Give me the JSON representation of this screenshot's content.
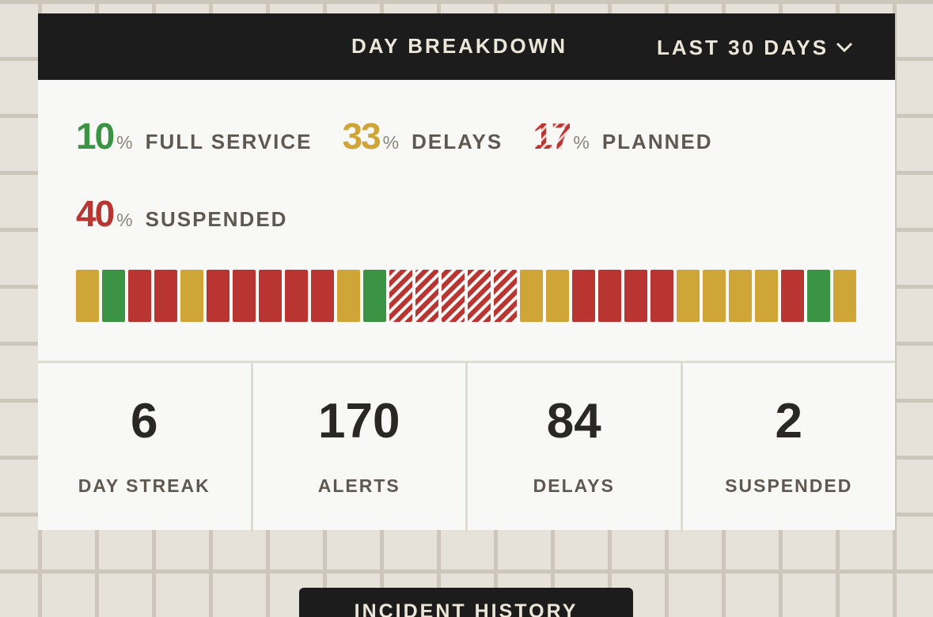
{
  "header": {
    "title": "DAY BREAKDOWN",
    "range": "LAST 30 DAYS"
  },
  "breakdown": {
    "unit": "%",
    "items": [
      {
        "value": 10,
        "label": "FULL SERVICE",
        "color": "#3b9443",
        "striped": false
      },
      {
        "value": 33,
        "label": "DELAYS",
        "color": "#d0a537",
        "striped": false
      },
      {
        "value": 17,
        "label": "PLANNED",
        "color": "#b83532",
        "striped": true
      },
      {
        "value": 40,
        "label": "SUSPENDED",
        "color": "#b83532",
        "striped": false
      }
    ],
    "days": [
      1,
      0,
      3,
      3,
      1,
      3,
      3,
      3,
      3,
      3,
      1,
      0,
      2,
      2,
      2,
      2,
      2,
      1,
      1,
      3,
      3,
      3,
      3,
      1,
      1,
      1,
      1,
      3,
      0,
      1
    ]
  },
  "stats": [
    {
      "value": 6,
      "label": "DAY STREAK"
    },
    {
      "value": 170,
      "label": "ALERTS"
    },
    {
      "value": 84,
      "label": "DELAYS"
    },
    {
      "value": 2,
      "label": "SUSPENDED"
    }
  ],
  "button": {
    "label": "INCIDENT HISTORY"
  }
}
